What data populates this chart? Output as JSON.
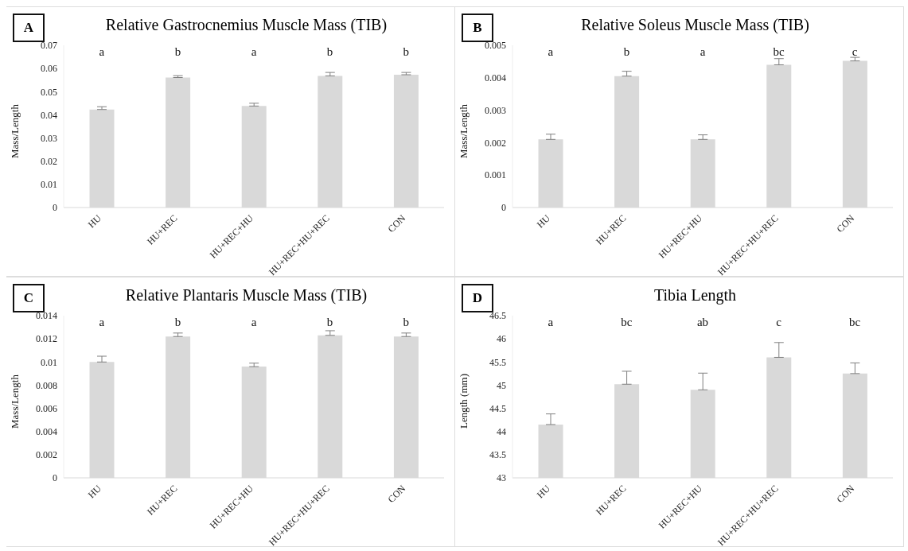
{
  "chart_data": [
    {
      "type": "bar",
      "title": "Relative Gastrocnemius Muscle Mass (TIB)",
      "ylabel": "Mass/Length",
      "categories": [
        "HU",
        "HU+REC",
        "HU+REC+HU",
        "HU+REC+HU+REC",
        "CON"
      ],
      "values": [
        0.0423,
        0.0561,
        0.0438,
        0.0568,
        0.0573
      ],
      "errors": [
        [
          0.0423,
          0.0435
        ],
        [
          0.0561,
          0.0569
        ],
        [
          0.0438,
          0.045
        ],
        [
          0.0568,
          0.0583
        ],
        [
          0.0573,
          0.0583
        ]
      ],
      "color": "#d9d9d9",
      "ylim": [
        0,
        0.07
      ],
      "yticks": [
        0,
        0.01,
        0.02,
        0.03,
        0.04,
        0.05,
        0.06,
        0.07
      ],
      "grid": false,
      "legend": false,
      "annotations": [
        "A",
        "a",
        "b",
        "a",
        "b",
        "b"
      ]
    },
    {
      "type": "bar",
      "title": "Relative Soleus Muscle Mass (TIB)",
      "ylabel": "Mass/Length",
      "categories": [
        "HU",
        "HU+REC",
        "HU+REC+HU",
        "HU+REC+HU+REC",
        "CON"
      ],
      "values": [
        0.0021,
        0.00405,
        0.0021,
        0.0044,
        0.00452
      ],
      "errors": [
        [
          0.0021,
          0.00226
        ],
        [
          0.00405,
          0.0042
        ],
        [
          0.0021,
          0.00224
        ],
        [
          0.0044,
          0.00459
        ],
        [
          0.00452,
          0.00463
        ]
      ],
      "color": "#d9d9d9",
      "ylim": [
        0,
        0.005
      ],
      "yticks": [
        0,
        0.001,
        0.002,
        0.003,
        0.004,
        0.005
      ],
      "grid": false,
      "legend": false,
      "annotations": [
        "B",
        "a",
        "b",
        "a",
        "bc",
        "c"
      ]
    },
    {
      "type": "bar",
      "title": "Relative Plantaris Muscle Mass (TIB)",
      "ylabel": "Mass/Length",
      "categories": [
        "HU",
        "HU+REC",
        "HU+REC+HU",
        "HU+REC+HU+REC",
        "CON"
      ],
      "values": [
        0.01,
        0.0122,
        0.0096,
        0.0123,
        0.0122
      ],
      "errors": [
        [
          0.01,
          0.0105
        ],
        [
          0.0122,
          0.0125
        ],
        [
          0.0096,
          0.0099
        ],
        [
          0.0123,
          0.0127
        ],
        [
          0.0122,
          0.0125
        ]
      ],
      "color": "#d9d9d9",
      "ylim": [
        0,
        0.014
      ],
      "yticks": [
        0,
        0.002,
        0.004,
        0.006,
        0.008,
        0.01,
        0.012,
        0.014
      ],
      "grid": false,
      "legend": false,
      "annotations": [
        "C",
        "a",
        "b",
        "a",
        "b",
        "b"
      ]
    },
    {
      "type": "bar",
      "title": "Tibia Length",
      "ylabel": "Length (mm)",
      "categories": [
        "HU",
        "HU+REC",
        "HU+REC+HU",
        "HU+REC+HU+REC",
        "CON"
      ],
      "values": [
        44.15,
        45.02,
        44.9,
        45.6,
        45.25
      ],
      "errors": [
        [
          44.15,
          44.38
        ],
        [
          45.02,
          45.3
        ],
        [
          44.9,
          45.26
        ],
        [
          45.6,
          45.92
        ],
        [
          45.25,
          45.48
        ]
      ],
      "color": "#d9d9d9",
      "ylim": [
        43,
        46.5
      ],
      "yticks": [
        43,
        43.5,
        44,
        44.5,
        45,
        45.5,
        46,
        46.5
      ],
      "grid": false,
      "legend": false,
      "annotations": [
        "D",
        "a",
        "bc",
        "ab",
        "c",
        "bc"
      ]
    }
  ]
}
